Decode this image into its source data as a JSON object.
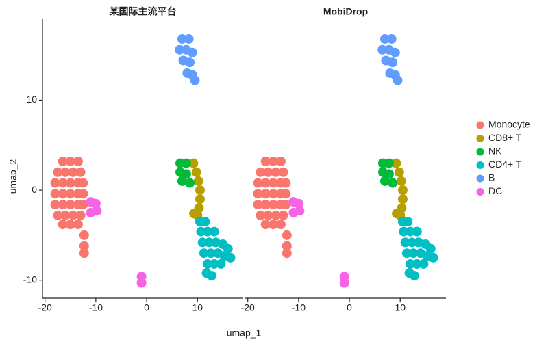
{
  "chart_data": [
    {
      "type": "scatter",
      "title": "某国际主流平台",
      "x_label": "umap_1",
      "y_label": "umap_2",
      "legend": "right",
      "xlim": [
        -20.5,
        19
      ],
      "ylim": [
        -12,
        19
      ],
      "xticks": [
        -20,
        -10,
        0,
        10
      ],
      "yticks": [
        -10,
        0,
        10
      ],
      "series": [
        {
          "name": "Monocyte",
          "color": "#F8766D",
          "x": [
            -16.5,
            -15,
            -13.5,
            -17.5,
            -16,
            -14.5,
            -13,
            -18,
            -16.5,
            -15,
            -13.5,
            -12.5,
            -18,
            -16.5,
            -15,
            -13.5,
            -12.5,
            -18,
            -16.5,
            -15,
            -13.5,
            -12.5,
            -17.5,
            -16,
            -14.5,
            -13,
            -16.5,
            -15,
            -13.5,
            -12.3,
            -12.3,
            -12.3
          ],
          "values": [
            3.2,
            3.2,
            3.2,
            2,
            2,
            2,
            2,
            0.8,
            0.8,
            0.8,
            0.8,
            0.8,
            -0.4,
            -0.4,
            -0.4,
            -0.4,
            -0.4,
            -1.6,
            -1.6,
            -1.6,
            -1.6,
            -1.6,
            -2.8,
            -2.8,
            -2.8,
            -2.8,
            -3.8,
            -3.8,
            -3.8,
            -5,
            -6.2,
            -7
          ]
        },
        {
          "name": "CD8+ T",
          "color": "#B79F00",
          "x": [
            9.2,
            9.8,
            10.2,
            10.5,
            10.5,
            10.3,
            10,
            9.3
          ],
          "values": [
            3,
            2,
            1,
            0,
            -1,
            -2,
            -2.8,
            -2.6
          ]
        },
        {
          "name": "NK",
          "color": "#00BA38",
          "x": [
            6.6,
            7.8,
            6.6,
            7.8,
            7,
            8.5
          ],
          "values": [
            3,
            3,
            2,
            1.8,
            1,
            0.8
          ]
        },
        {
          "name": "CD4+ T",
          "color": "#00BFC4",
          "x": [
            10.5,
            11.5,
            10.7,
            12,
            13.3,
            11,
            12.3,
            13.6,
            15,
            16,
            11.3,
            12.6,
            14,
            15.3,
            16.5,
            12,
            13.3,
            14.6,
            11.8,
            12.8
          ],
          "values": [
            -3.5,
            -3.5,
            -4.6,
            -4.6,
            -4.6,
            -5.8,
            -5.8,
            -5.8,
            -6,
            -6.5,
            -7,
            -7,
            -7,
            -7.3,
            -7.5,
            -8.2,
            -8.2,
            -8.2,
            -9.2,
            -9.5
          ]
        },
        {
          "name": "B",
          "color": "#619CFF",
          "x": [
            7,
            8.3,
            6.5,
            7.8,
            9,
            7.2,
            8.5,
            8,
            9,
            9.5
          ],
          "values": [
            16.8,
            16.8,
            15.6,
            15.6,
            15.3,
            14.4,
            14.2,
            13,
            12.8,
            12.2
          ]
        },
        {
          "name": "DC",
          "color": "#F564E3",
          "x": [
            -11,
            -10,
            -9.8,
            -11,
            -1,
            -1
          ],
          "values": [
            -1.3,
            -1.5,
            -2.3,
            -2.5,
            -9.6,
            -10.3
          ]
        }
      ]
    },
    {
      "type": "scatter",
      "title": "MobiDrop",
      "xlim": [
        -20.5,
        19
      ],
      "ylim": [
        -12,
        19
      ],
      "xticks": [
        -20,
        -10,
        0,
        10
      ],
      "series": [
        {
          "name": "Monocyte",
          "color": "#F8766D",
          "x": [
            -16.5,
            -15,
            -13.5,
            -17.5,
            -16,
            -14.5,
            -13,
            -18,
            -16.5,
            -15,
            -13.5,
            -12.5,
            -18,
            -16.5,
            -15,
            -13.5,
            -12.5,
            -18,
            -16.5,
            -15,
            -13.5,
            -12.5,
            -17.5,
            -16,
            -14.5,
            -13,
            -16.5,
            -15,
            -13.5,
            -12.3,
            -12.3,
            -12.3
          ],
          "values": [
            3.2,
            3.2,
            3.2,
            2,
            2,
            2,
            2,
            0.8,
            0.8,
            0.8,
            0.8,
            0.8,
            -0.4,
            -0.4,
            -0.4,
            -0.4,
            -0.4,
            -1.6,
            -1.6,
            -1.6,
            -1.6,
            -1.6,
            -2.8,
            -2.8,
            -2.8,
            -2.8,
            -3.8,
            -3.8,
            -3.8,
            -5,
            -6.2,
            -7
          ]
        },
        {
          "name": "CD8+ T",
          "color": "#B79F00",
          "x": [
            9.2,
            9.8,
            10.2,
            10.5,
            10.5,
            10.3,
            10,
            9.3
          ],
          "values": [
            3,
            2,
            1,
            0,
            -1,
            -2,
            -2.8,
            -2.6
          ]
        },
        {
          "name": "NK",
          "color": "#00BA38",
          "x": [
            6.6,
            7.8,
            6.6,
            7.8,
            7,
            8.5
          ],
          "values": [
            3,
            3,
            2,
            1.8,
            1,
            0.8
          ]
        },
        {
          "name": "CD4+ T",
          "color": "#00BFC4",
          "x": [
            10.5,
            11.5,
            10.7,
            12,
            13.3,
            11,
            12.3,
            13.6,
            15,
            16,
            11.3,
            12.6,
            14,
            15.3,
            16.5,
            12,
            13.3,
            14.6,
            11.8,
            12.8
          ],
          "values": [
            -3.5,
            -3.5,
            -4.6,
            -4.6,
            -4.6,
            -5.8,
            -5.8,
            -5.8,
            -6,
            -6.5,
            -7,
            -7,
            -7,
            -7.3,
            -7.5,
            -8.2,
            -8.2,
            -8.2,
            -9.2,
            -9.5
          ]
        },
        {
          "name": "B",
          "color": "#619CFF",
          "x": [
            7,
            8.3,
            6.5,
            7.8,
            9,
            7.2,
            8.5,
            8,
            9,
            9.5
          ],
          "values": [
            16.8,
            16.8,
            15.6,
            15.6,
            15.3,
            14.4,
            14.2,
            13,
            12.8,
            12.2
          ]
        },
        {
          "name": "DC",
          "color": "#F564E3",
          "x": [
            -11,
            -10,
            -9.8,
            -11,
            -1,
            -1
          ],
          "values": [
            -1.3,
            -1.5,
            -2.3,
            -2.5,
            -9.6,
            -10.3
          ]
        }
      ]
    }
  ]
}
